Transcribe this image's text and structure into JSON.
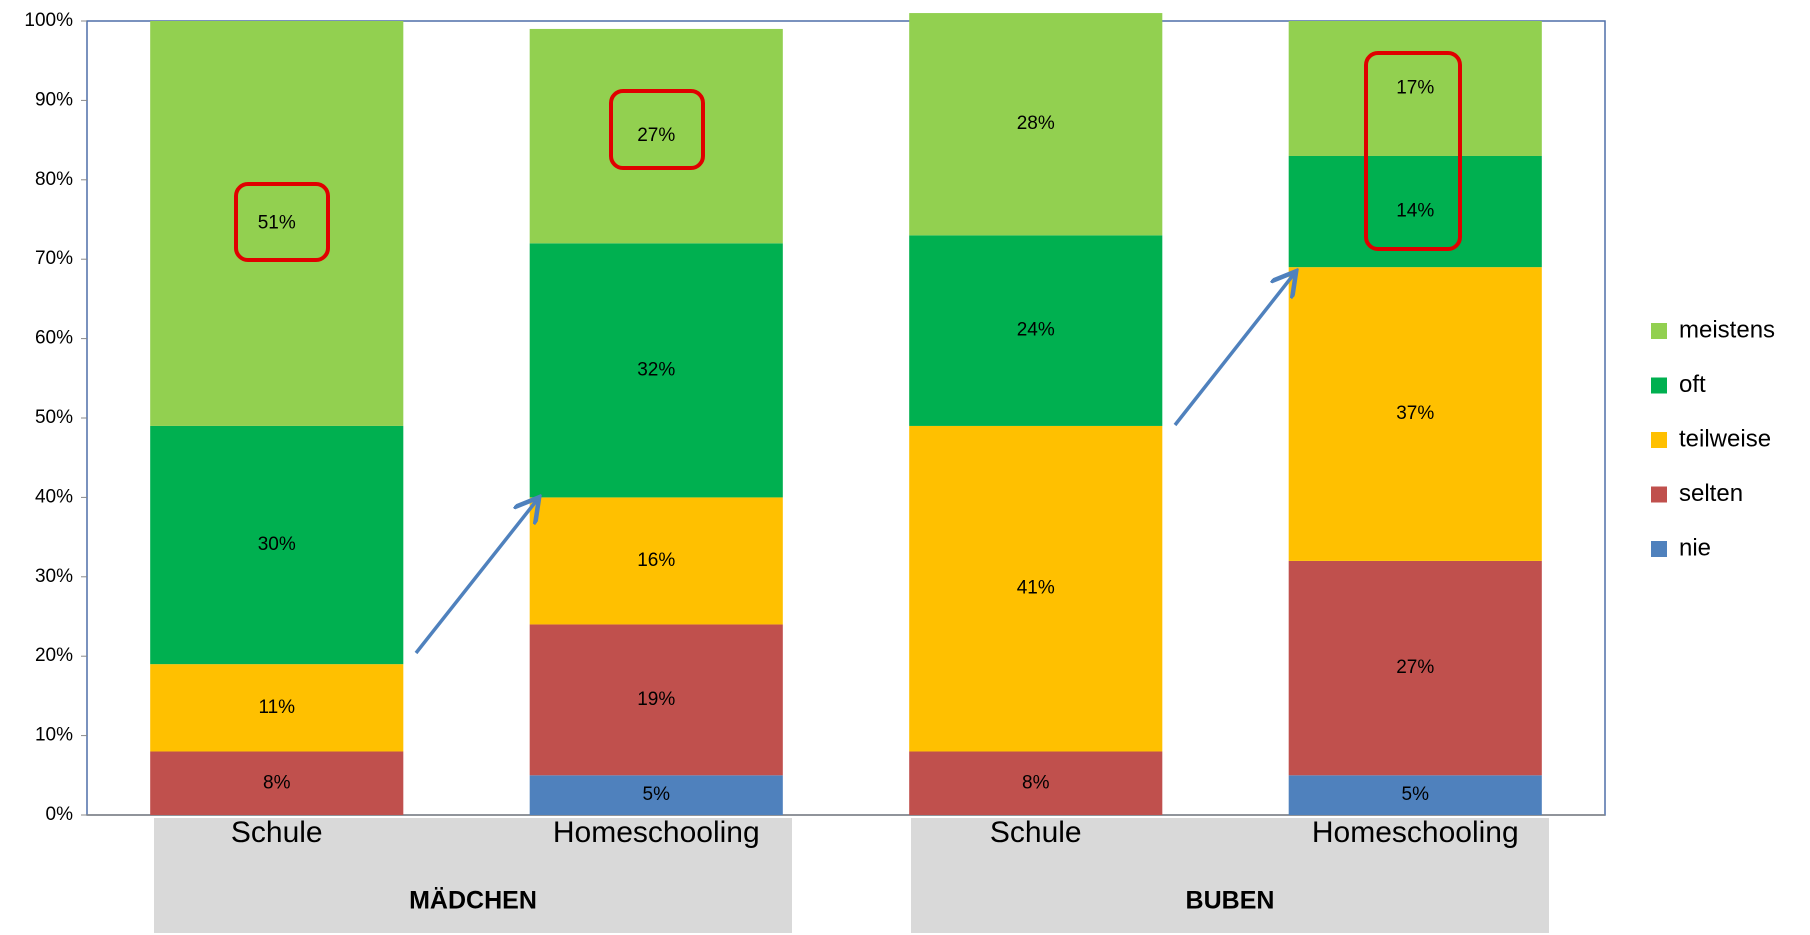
{
  "chart_data": {
    "type": "stacked_bar",
    "categories": [
      "Schule",
      "Homeschooling",
      "Schule",
      "Homeschooling"
    ],
    "groups": [
      "MÄDCHEN",
      "BUBEN"
    ],
    "series": [
      {
        "name": "nie",
        "color": "#4f81bd",
        "values": [
          0,
          5,
          0,
          5
        ],
        "value_labels": [
          null,
          "5%",
          null,
          "5%"
        ]
      },
      {
        "name": "selten",
        "color": "#c0504d",
        "values": [
          8,
          19,
          8,
          27
        ],
        "value_labels": [
          "8%",
          "19%",
          "8%",
          "27%"
        ]
      },
      {
        "name": "teilweise",
        "color": "#ffc000",
        "values": [
          11,
          16,
          41,
          37
        ],
        "value_labels": [
          "11%",
          "16%",
          "41%",
          "37%"
        ]
      },
      {
        "name": "oft",
        "color": "#00b050",
        "values": [
          30,
          32,
          24,
          14
        ],
        "value_labels": [
          "30%",
          "32%",
          "24%",
          "14%"
        ]
      },
      {
        "name": "meistens",
        "color": "#92d050",
        "values": [
          51,
          27,
          28,
          17
        ],
        "value_labels": [
          "51%",
          "27%",
          "28%",
          "17%"
        ]
      }
    ],
    "ylim": [
      0,
      100
    ],
    "yticks": [
      {
        "value": 0,
        "label": "0%"
      },
      {
        "value": 10,
        "label": "10%"
      },
      {
        "value": 20,
        "label": "20%"
      },
      {
        "value": 30,
        "label": "30%"
      },
      {
        "value": 40,
        "label": "40%"
      },
      {
        "value": 50,
        "label": "50%"
      },
      {
        "value": 60,
        "label": "60%"
      },
      {
        "value": 70,
        "label": "70%"
      },
      {
        "value": 80,
        "label": "80%"
      },
      {
        "value": 90,
        "label": "90%"
      },
      {
        "value": 100,
        "label": "100%"
      }
    ],
    "legend": "right"
  }
}
